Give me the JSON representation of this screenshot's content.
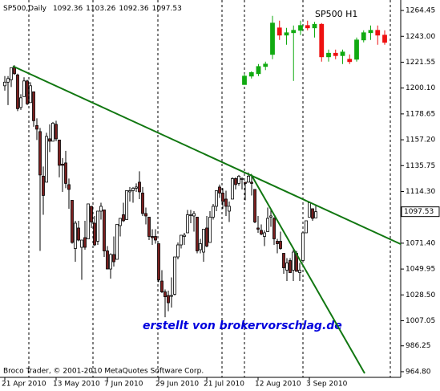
{
  "header": {
    "symbol": "SP500,Daily",
    "ohlc": [
      1092.36,
      1103.26,
      1092.36,
      1097.53
    ]
  },
  "copyright": "Broco Trader, © 2001-2010 MetaQuotes Software Corp.",
  "watermark": "erstellt von brokervorschlag.de",
  "chart_data": [
    {
      "type": "candlestick",
      "last_price": {
        "value": 1097.53,
        "label": "1097.53"
      },
      "up_color": "#ffffff",
      "down_color": "#7a1f1f",
      "wick_color": "#000000",
      "trendline_color": "#117711",
      "ylim": [
        960.1,
        1273.15
      ],
      "yticks": [
        1264.45,
        {
          "value": 1243,
          "label": "1243.00"
        },
        1221.55,
        {
          "value": 1200.1,
          "label": "1200.10"
        },
        1178.65,
        {
          "value": 1157.2,
          "label": "1157.20"
        },
        1135.75,
        {
          "value": 1114.3,
          "label": "1114.30"
        },
        {
          "value": 1071.4,
          "label": "1071.40"
        },
        1049.95,
        {
          "value": 1028.5,
          "label": "1028.50"
        },
        1007.05,
        986.25,
        {
          "value": 964.8,
          "label": "964.80"
        }
      ],
      "categories": [
        "21 Apr 2010",
        null,
        null,
        null,
        null,
        null,
        null,
        null,
        null,
        null,
        null,
        null,
        null,
        null,
        null,
        null,
        "13 May 2010",
        null,
        null,
        null,
        null,
        null,
        null,
        null,
        null,
        null,
        null,
        null,
        null,
        null,
        null,
        null,
        "7 Jun 2010",
        null,
        null,
        null,
        null,
        null,
        null,
        null,
        null,
        null,
        null,
        null,
        null,
        null,
        null,
        null,
        "29 Jun 2010",
        null,
        null,
        null,
        null,
        null,
        null,
        null,
        null,
        null,
        null,
        null,
        null,
        null,
        null,
        "21 Jul 2010",
        null,
        null,
        null,
        null,
        null,
        null,
        null,
        null,
        null,
        null,
        null,
        null,
        null,
        null,
        null,
        "12 Aug 2010",
        null,
        null,
        null,
        null,
        null,
        null,
        null,
        null,
        null,
        null,
        null,
        null,
        null,
        null,
        null,
        "3 Sep 2010",
        null,
        null
      ],
      "values": [
        [
          1202,
          1210,
          1198,
          1205
        ],
        [
          1205,
          1210,
          1186,
          1208
        ],
        [
          1207,
          1217,
          1201,
          1217
        ],
        [
          1217,
          1219,
          1211,
          1212
        ],
        [
          1211,
          1212,
          1181,
          1183
        ],
        [
          1184,
          1195,
          1182,
          1192
        ],
        [
          1193,
          1209,
          1193,
          1206
        ],
        [
          1206,
          1207,
          1186,
          1187
        ],
        [
          1188,
          1205,
          1188,
          1202
        ],
        [
          1197,
          1197,
          1168,
          1173
        ],
        [
          1169,
          1175,
          1157,
          1166
        ],
        [
          1164,
          1167,
          1065,
          1128
        ],
        [
          1127,
          1135,
          1095,
          1111
        ],
        [
          1122,
          1163,
          1122,
          1160
        ],
        [
          1158,
          1170,
          1147,
          1156
        ],
        [
          1156,
          1172,
          1156,
          1171
        ],
        [
          1170,
          1173,
          1156,
          1158
        ],
        [
          1157,
          1157,
          1126,
          1136
        ],
        [
          1137,
          1142,
          1114,
          1136
        ],
        [
          1138,
          1148,
          1117,
          1121
        ],
        [
          1120,
          1125,
          1100,
          1116
        ],
        [
          1107,
          1107,
          1071,
          1072
        ],
        [
          1067,
          1090,
          1056,
          1088
        ],
        [
          1084,
          1090,
          1073,
          1074
        ],
        [
          1068,
          1074,
          1041,
          1074
        ],
        [
          1076,
          1090,
          1066,
          1068
        ],
        [
          1075,
          1104,
          1075,
          1104
        ],
        [
          1102,
          1102,
          1084,
          1089
        ],
        [
          1088,
          1094,
          1069,
          1070
        ],
        [
          1073,
          1098,
          1070,
          1098
        ],
        [
          1098,
          1105,
          1091,
          1102
        ],
        [
          1099,
          1099,
          1060,
          1065
        ],
        [
          1065,
          1069,
          1050,
          1050
        ],
        [
          1050,
          1063,
          1042,
          1062
        ],
        [
          1062,
          1077,
          1052,
          1056
        ],
        [
          1058,
          1087,
          1058,
          1087
        ],
        [
          1086,
          1092,
          1077,
          1092
        ],
        [
          1095,
          1105,
          1089,
          1090
        ],
        [
          1091,
          1115,
          1091,
          1115
        ],
        [
          1114,
          1118,
          1106,
          1115
        ],
        [
          1115,
          1118,
          1105,
          1117
        ],
        [
          1117,
          1121,
          1114,
          1118
        ],
        [
          1122,
          1131,
          1108,
          1114
        ],
        [
          1113,
          1118,
          1094,
          1096
        ],
        [
          1096,
          1101,
          1087,
          1094
        ],
        [
          1093,
          1093,
          1074,
          1077
        ],
        [
          1077,
          1083,
          1070,
          1076
        ],
        [
          1077,
          1083,
          1071,
          1074
        ],
        [
          1071,
          1071,
          1039,
          1041
        ],
        [
          1040,
          1049,
          1030,
          1031
        ],
        [
          1031,
          1033,
          1010,
          1027
        ],
        [
          1028,
          1032,
          1015,
          1022
        ],
        [
          1028,
          1043,
          1018,
          1028
        ],
        [
          1029,
          1060,
          1028,
          1060
        ],
        [
          1060,
          1072,
          1058,
          1070
        ],
        [
          1070,
          1078,
          1067,
          1078
        ],
        [
          1077,
          1080,
          1070,
          1078
        ],
        [
          1080,
          1099,
          1080,
          1095
        ],
        [
          1095,
          1099,
          1088,
          1095
        ],
        [
          1094,
          1098,
          1081,
          1096
        ],
        [
          1093,
          1093,
          1063,
          1065
        ],
        [
          1066,
          1075,
          1063,
          1071
        ],
        [
          1064,
          1083,
          1056,
          1083
        ],
        [
          1084,
          1094,
          1068,
          1069
        ],
        [
          1072,
          1098,
          1072,
          1093
        ],
        [
          1093,
          1104,
          1091,
          1102
        ],
        [
          1102,
          1115,
          1098,
          1115
        ],
        [
          1118,
          1120,
          1109,
          1113
        ],
        [
          1113,
          1117,
          1100,
          1106
        ],
        [
          1108,
          1115,
          1094,
          1102
        ],
        [
          1098,
          1106,
          1089,
          1102
        ],
        [
          1108,
          1126,
          1108,
          1125
        ],
        [
          1125,
          1126,
          1116,
          1120
        ],
        [
          1121,
          1128,
          1119,
          1127
        ],
        [
          1125,
          1126,
          1116,
          1125
        ],
        [
          1122,
          1122,
          1107,
          1121
        ],
        [
          1122,
          1130,
          1122,
          1127
        ],
        [
          1122,
          1127,
          1111,
          1121
        ],
        [
          1116,
          1116,
          1088,
          1089
        ],
        [
          1084,
          1094,
          1080,
          1083
        ],
        [
          1082,
          1087,
          1078,
          1079
        ],
        [
          1077,
          1082,
          1069,
          1080
        ],
        [
          1081,
          1101,
          1081,
          1092
        ],
        [
          1093,
          1100,
          1085,
          1094
        ],
        [
          1092,
          1093,
          1070,
          1075
        ],
        [
          1073,
          1075,
          1063,
          1071
        ],
        [
          1073,
          1081,
          1066,
          1067
        ],
        [
          1063,
          1063,
          1046,
          1051
        ],
        [
          1049,
          1059,
          1040,
          1055
        ],
        [
          1057,
          1059,
          1047,
          1047
        ],
        [
          1049,
          1066,
          1040,
          1064
        ],
        [
          1063,
          1065,
          1048,
          1048
        ],
        [
          1047,
          1055,
          1040,
          1049
        ],
        [
          1057,
          1081,
          1057,
          1080
        ],
        [
          1080,
          1090,
          1080,
          1090
        ],
        [
          1093,
          1105,
          1093,
          1105
        ],
        [
          1100,
          1100,
          1090,
          1092
        ],
        [
          1092.36,
          1103.26,
          1092.36,
          1097.53
        ]
      ],
      "trendlines": [
        {
          "x": [
            2.5,
            124.75
          ],
          "y": [
            1218.3,
            1069.1
          ]
        },
        {
          "x": [
            76.75,
            112.25
          ],
          "y": [
            1128.7,
            963.4
          ]
        }
      ]
    },
    {
      "type": "inset-candlestick",
      "title": "SP500 H1",
      "up_color": "#11aa11",
      "down_color": "#ee1111",
      "values": [
        [
          1203,
          1212,
          1203,
          1210
        ],
        [
          1210,
          1214,
          1208,
          1213
        ],
        [
          1212,
          1220,
          1210,
          1218
        ],
        [
          1218,
          1222,
          1215,
          1220
        ],
        [
          1228,
          1260,
          1224,
          1254
        ],
        [
          1250,
          1256,
          1240,
          1244
        ],
        [
          1244,
          1250,
          1236,
          1246
        ],
        [
          1246,
          1252,
          1206,
          1248
        ],
        [
          1248,
          1256,
          1244,
          1252
        ],
        [
          1252,
          1256,
          1248,
          1250
        ],
        [
          1250,
          1255,
          1242,
          1253
        ],
        [
          1253,
          1254,
          1222,
          1226
        ],
        [
          1226,
          1232,
          1222,
          1229
        ],
        [
          1229,
          1232,
          1224,
          1227
        ],
        [
          1227,
          1232,
          1220,
          1230
        ],
        [
          1224,
          1228,
          1220,
          1222
        ],
        [
          1224,
          1242,
          1222,
          1240
        ],
        [
          1240,
          1248,
          1238,
          1246
        ],
        [
          1246,
          1252,
          1240,
          1248
        ],
        [
          1248,
          1252,
          1236,
          1244
        ],
        [
          1244,
          1248,
          1236,
          1238
        ]
      ]
    }
  ]
}
